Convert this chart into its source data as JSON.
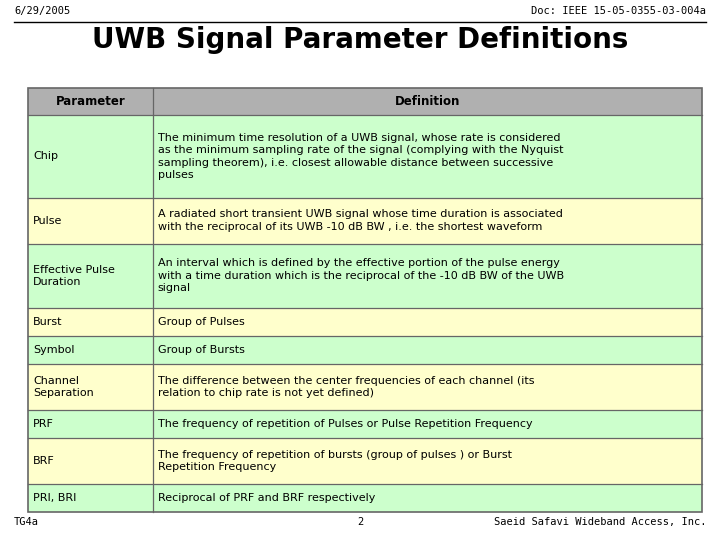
{
  "title": "UWB Signal Parameter Definitions",
  "header_left": "6/29/2005",
  "header_right": "Doc: IEEE 15-05-0355-03-004a",
  "footer_left": "TG4a",
  "footer_center": "2",
  "footer_right": "Saeid Safavi Wideband Access, Inc.",
  "col_header": [
    "Parameter",
    "Definition"
  ],
  "rows": [
    {
      "param": "Chip",
      "definition": "The minimum time resolution of a UWB signal, whose rate is considered\nas the minimum sampling rate of the signal (complying with the Nyquist\nsampling theorem), i.e. closest allowable distance between successive\npulses",
      "bg": "#ccffcc",
      "n_lines": 4
    },
    {
      "param": "Pulse",
      "definition": "A radiated short transient UWB signal whose time duration is associated\nwith the reciprocal of its UWB -10 dB BW , i.e. the shortest waveform",
      "bg": "#ffffcc",
      "n_lines": 2
    },
    {
      "param": "Effective Pulse\nDuration",
      "definition": "An interval which is defined by the effective portion of the pulse energy\nwith a time duration which is the reciprocal of the -10 dB BW of the UWB\nsignal",
      "bg": "#ccffcc",
      "n_lines": 3
    },
    {
      "param": "Burst",
      "definition": "Group of Pulses",
      "bg": "#ffffcc",
      "n_lines": 1
    },
    {
      "param": "Symbol",
      "definition": "Group of Bursts",
      "bg": "#ccffcc",
      "n_lines": 1
    },
    {
      "param": "Channel\nSeparation",
      "definition": "The difference between the center frequencies of each channel (its\nrelation to chip rate is not yet defined)",
      "bg": "#ffffcc",
      "n_lines": 2
    },
    {
      "param": "PRF",
      "definition": "The frequency of repetition of Pulses or Pulse Repetition Frequency",
      "bg": "#ccffcc",
      "n_lines": 1
    },
    {
      "param": "BRF",
      "definition": "The frequency of repetition of bursts (group of pulses ) or Burst\nRepetition Frequency",
      "bg": "#ffffcc",
      "n_lines": 2
    },
    {
      "param": "PRI, BRI",
      "definition": "Reciprocal of PRF and BRF respectively",
      "bg": "#ccffcc",
      "n_lines": 1
    }
  ],
  "header_bg": "#b0b0b0",
  "bg_color": "#ffffff",
  "fig_width": 7.2,
  "fig_height": 5.4,
  "dpi": 100
}
